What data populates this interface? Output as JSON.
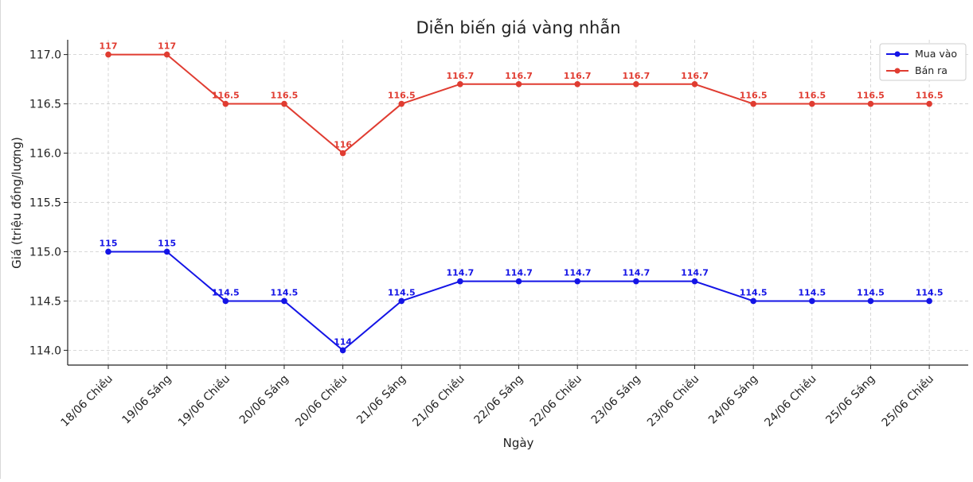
{
  "chart_data": {
    "type": "line",
    "title": "Diễn biến giá vàng nhẫn",
    "xlabel": "Ngày",
    "ylabel": "Giá (triệu đồng/lượng)",
    "categories": [
      "18/06 Chiều",
      "19/06 Sáng",
      "19/06 Chiều",
      "20/06 Sáng",
      "20/06 Chiều",
      "21/06 Sáng",
      "21/06 Chiều",
      "22/06 Sáng",
      "22/06 Chiều",
      "23/06 Sáng",
      "23/06 Chiều",
      "24/06 Sáng",
      "24/06 Chiều",
      "25/06 Sáng",
      "25/06 Chiều"
    ],
    "series": [
      {
        "name": "Mua vào",
        "color": "#1414e6",
        "values": [
          115,
          115,
          114.5,
          114.5,
          114,
          114.5,
          114.7,
          114.7,
          114.7,
          114.7,
          114.7,
          114.5,
          114.5,
          114.5,
          114.5
        ]
      },
      {
        "name": "Bán ra",
        "color": "#e03c31",
        "values": [
          117,
          117,
          116.5,
          116.5,
          116,
          116.5,
          116.7,
          116.7,
          116.7,
          116.7,
          116.7,
          116.5,
          116.5,
          116.5,
          116.5
        ]
      }
    ],
    "ylim": [
      113.85,
      117.15
    ],
    "yticks": [
      "114.0",
      "114.5",
      "115.0",
      "115.5",
      "116.0",
      "116.5",
      "117.0"
    ],
    "grid": true,
    "legend_position": "top-right"
  }
}
